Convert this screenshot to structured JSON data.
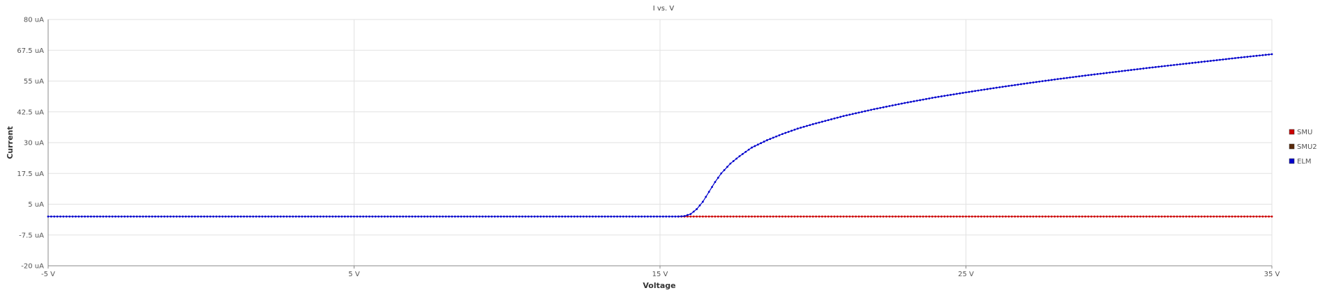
{
  "chart_data": {
    "type": "scatter",
    "title": "I vs. V",
    "xlabel": "Voltage",
    "ylabel": "Current",
    "x_unit": "V",
    "y_unit": "uA",
    "xlim": [
      -5,
      35
    ],
    "ylim": [
      -20,
      80
    ],
    "x_ticks": [
      -5,
      5,
      15,
      25,
      35
    ],
    "x_tick_labels": [
      "-5 V",
      "5 V",
      "15 V",
      "25 V",
      "35 V"
    ],
    "y_ticks": [
      -20,
      -7.5,
      5,
      17.5,
      30,
      42.5,
      55,
      67.5,
      80
    ],
    "y_tick_labels": [
      "-20 uA",
      "-7.5 uA",
      "5 uA",
      "17.5 uA",
      "30 uA",
      "42.5 uA",
      "55 uA",
      "67.5 uA",
      "80 uA"
    ],
    "grid": true,
    "legend_position": "right",
    "x_step": 0.1,
    "series": [
      {
        "name": "SMU",
        "color": "#cc0000",
        "x_range": [
          15.6,
          35
        ],
        "points": [
          [
            15.6,
            0
          ],
          [
            35,
            0
          ]
        ]
      },
      {
        "name": "SMU2",
        "color": "#5a2a0a",
        "points": []
      },
      {
        "name": "ELM",
        "color": "#0000cc",
        "x_range": [
          -5,
          35
        ],
        "points": [
          [
            -5,
            0
          ],
          [
            15.6,
            0
          ],
          [
            15.8,
            0.2
          ],
          [
            16.0,
            1
          ],
          [
            16.2,
            3
          ],
          [
            16.4,
            6
          ],
          [
            16.6,
            10
          ],
          [
            16.8,
            14
          ],
          [
            17.0,
            17.5
          ],
          [
            17.3,
            21.5
          ],
          [
            17.6,
            24.5
          ],
          [
            18.0,
            28
          ],
          [
            18.5,
            31
          ],
          [
            19.0,
            33.5
          ],
          [
            19.5,
            35.7
          ],
          [
            20.0,
            37.5
          ],
          [
            21.0,
            40.8
          ],
          [
            22.0,
            43.6
          ],
          [
            23.0,
            46.1
          ],
          [
            24.0,
            48.4
          ],
          [
            25.0,
            50.4
          ],
          [
            26.0,
            52.3
          ],
          [
            27.0,
            54.1
          ],
          [
            28.0,
            55.8
          ],
          [
            29.0,
            57.4
          ],
          [
            30.0,
            58.9
          ],
          [
            31.0,
            60.4
          ],
          [
            32.0,
            61.8
          ],
          [
            33.0,
            63.2
          ],
          [
            34.0,
            64.6
          ],
          [
            35.0,
            65.9
          ]
        ]
      }
    ]
  }
}
